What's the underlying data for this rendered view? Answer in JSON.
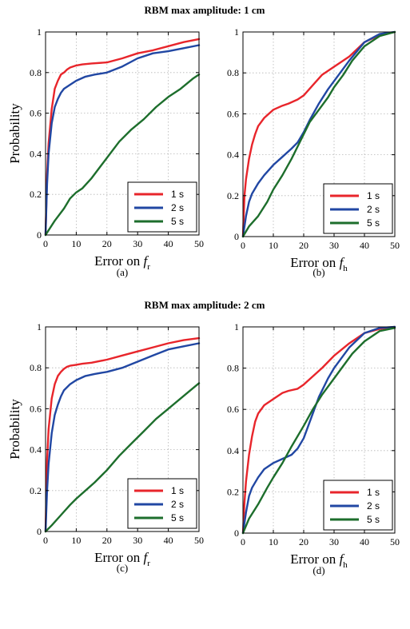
{
  "sections": [
    {
      "title": "RBM max amplitude: 1 cm"
    },
    {
      "title": "RBM max amplitude: 2 cm"
    }
  ],
  "chart_data": [
    {
      "type": "line",
      "panel": "(a)",
      "xlabel_text": "Error on ",
      "xlabel_var": "f",
      "xlabel_sub": "r",
      "ylabel": "Probability",
      "xlim": [
        0,
        50
      ],
      "ylim": [
        0,
        1
      ],
      "xticks": [
        0,
        10,
        20,
        30,
        40,
        50
      ],
      "yticks": [
        0,
        0.2,
        0.4,
        0.6,
        0.8,
        1
      ],
      "ytick_labels": [
        "0",
        "0.2",
        "0.4",
        "0.6",
        "0.8",
        "1"
      ],
      "grid": true,
      "legend": "bottom-right",
      "series": [
        {
          "name": "1 s",
          "color": "#e8252b",
          "x": [
            0,
            0.5,
            1,
            2,
            3,
            4,
            5,
            6,
            7,
            8,
            10,
            12,
            15,
            20,
            25,
            30,
            35,
            40,
            45,
            50
          ],
          "y": [
            0,
            0.3,
            0.45,
            0.62,
            0.72,
            0.76,
            0.79,
            0.8,
            0.815,
            0.825,
            0.835,
            0.84,
            0.845,
            0.85,
            0.87,
            0.895,
            0.91,
            0.93,
            0.95,
            0.965
          ]
        },
        {
          "name": "2 s",
          "color": "#2147a3",
          "x": [
            0,
            0.5,
            1,
            2,
            3,
            4,
            5,
            6,
            8,
            10,
            13,
            16,
            20,
            25,
            30,
            35,
            40,
            45,
            50
          ],
          "y": [
            0,
            0.25,
            0.4,
            0.55,
            0.63,
            0.67,
            0.7,
            0.72,
            0.74,
            0.76,
            0.78,
            0.79,
            0.8,
            0.83,
            0.87,
            0.895,
            0.905,
            0.92,
            0.935
          ]
        },
        {
          "name": "5 s",
          "color": "#1d6e2c",
          "x": [
            0,
            3,
            6,
            8,
            10,
            12,
            15,
            18,
            20,
            24,
            28,
            32,
            36,
            40,
            44,
            48,
            50
          ],
          "y": [
            0,
            0.07,
            0.13,
            0.18,
            0.21,
            0.23,
            0.28,
            0.34,
            0.38,
            0.46,
            0.52,
            0.57,
            0.63,
            0.68,
            0.72,
            0.77,
            0.79
          ]
        }
      ]
    },
    {
      "type": "line",
      "panel": "(b)",
      "xlabel_text": "Error on ",
      "xlabel_var": "f",
      "xlabel_sub": "h",
      "ylabel": "",
      "xlim": [
        0,
        50
      ],
      "ylim": [
        0,
        1
      ],
      "xticks": [
        0,
        10,
        20,
        30,
        40,
        50
      ],
      "yticks": [
        0,
        0.2,
        0.4,
        0.6,
        0.8,
        1
      ],
      "ytick_labels": [
        "0",
        "0.2",
        "0.4",
        "0.6",
        "0.8",
        "1"
      ],
      "grid": true,
      "legend": "bottom-right",
      "series": [
        {
          "name": "1 s",
          "color": "#e8252b",
          "x": [
            0,
            0.5,
            1,
            2,
            3,
            4,
            5,
            7,
            10,
            13,
            15,
            18,
            20,
            23,
            26,
            30,
            35,
            40,
            45,
            50
          ],
          "y": [
            0,
            0.2,
            0.28,
            0.38,
            0.45,
            0.5,
            0.54,
            0.58,
            0.62,
            0.64,
            0.65,
            0.67,
            0.69,
            0.74,
            0.79,
            0.83,
            0.88,
            0.95,
            0.985,
            1
          ]
        },
        {
          "name": "2 s",
          "color": "#2147a3",
          "x": [
            0,
            1,
            2,
            3,
            5,
            7,
            10,
            13,
            16,
            18,
            20,
            22,
            25,
            28,
            30,
            35,
            40,
            45,
            50
          ],
          "y": [
            0,
            0.1,
            0.17,
            0.21,
            0.26,
            0.3,
            0.35,
            0.39,
            0.43,
            0.46,
            0.51,
            0.57,
            0.65,
            0.72,
            0.76,
            0.86,
            0.95,
            0.99,
            1
          ]
        },
        {
          "name": "5 s",
          "color": "#1d6e2c",
          "x": [
            0,
            2,
            5,
            8,
            10,
            13,
            16,
            18,
            20,
            22,
            25,
            28,
            30,
            33,
            36,
            40,
            45,
            50
          ],
          "y": [
            0,
            0.05,
            0.1,
            0.17,
            0.23,
            0.3,
            0.38,
            0.44,
            0.5,
            0.56,
            0.62,
            0.68,
            0.73,
            0.79,
            0.86,
            0.93,
            0.98,
            1
          ]
        }
      ]
    },
    {
      "type": "line",
      "panel": "(c)",
      "xlabel_text": "Error on ",
      "xlabel_var": "f",
      "xlabel_sub": "r",
      "ylabel": "Probability",
      "xlim": [
        0,
        50
      ],
      "ylim": [
        0,
        1
      ],
      "xticks": [
        0,
        10,
        20,
        30,
        40,
        50
      ],
      "yticks": [
        0,
        0.2,
        0.4,
        0.6,
        0.8,
        1
      ],
      "ytick_labels": [
        "0",
        "0.2",
        "0.4",
        "0.6",
        "0.8",
        "1"
      ],
      "grid": true,
      "legend": "bottom-right",
      "series": [
        {
          "name": "1 s",
          "color": "#e8252b",
          "x": [
            0,
            0.5,
            1,
            2,
            3,
            4,
            5,
            6,
            7,
            8,
            10,
            12,
            15,
            20,
            25,
            30,
            35,
            40,
            45,
            50
          ],
          "y": [
            0,
            0.35,
            0.5,
            0.65,
            0.72,
            0.76,
            0.78,
            0.795,
            0.805,
            0.81,
            0.815,
            0.82,
            0.825,
            0.84,
            0.86,
            0.88,
            0.9,
            0.92,
            0.935,
            0.945
          ]
        },
        {
          "name": "2 s",
          "color": "#2147a3",
          "x": [
            0,
            0.5,
            1,
            2,
            3,
            4,
            5,
            6,
            8,
            10,
            13,
            16,
            20,
            25,
            30,
            35,
            40,
            45,
            50
          ],
          "y": [
            0,
            0.2,
            0.33,
            0.48,
            0.57,
            0.62,
            0.66,
            0.69,
            0.72,
            0.74,
            0.76,
            0.77,
            0.78,
            0.8,
            0.83,
            0.86,
            0.89,
            0.905,
            0.92
          ]
        },
        {
          "name": "5 s",
          "color": "#1d6e2c",
          "x": [
            0,
            2,
            5,
            8,
            10,
            13,
            16,
            20,
            24,
            28,
            32,
            36,
            40,
            44,
            48,
            50
          ],
          "y": [
            0,
            0.03,
            0.08,
            0.13,
            0.16,
            0.2,
            0.24,
            0.3,
            0.37,
            0.43,
            0.49,
            0.55,
            0.6,
            0.65,
            0.7,
            0.725
          ]
        }
      ]
    },
    {
      "type": "line",
      "panel": "(d)",
      "xlabel_text": "Error on ",
      "xlabel_var": "f",
      "xlabel_sub": "h",
      "ylabel": "",
      "xlim": [
        0,
        50
      ],
      "ylim": [
        0,
        1
      ],
      "xticks": [
        0,
        10,
        20,
        30,
        40,
        50
      ],
      "yticks": [
        0,
        0.2,
        0.4,
        0.6,
        0.8,
        1
      ],
      "ytick_labels": [
        "0",
        "0.2",
        "0.4",
        "0.6",
        "0.8",
        "1"
      ],
      "grid": true,
      "legend": "bottom-right",
      "series": [
        {
          "name": "1 s",
          "color": "#e8252b",
          "x": [
            0,
            0.5,
            1,
            2,
            3,
            4,
            5,
            7,
            10,
            13,
            15,
            18,
            20,
            23,
            26,
            30,
            35,
            40,
            45,
            50
          ],
          "y": [
            0,
            0.15,
            0.25,
            0.38,
            0.47,
            0.54,
            0.58,
            0.62,
            0.65,
            0.68,
            0.69,
            0.7,
            0.72,
            0.76,
            0.8,
            0.86,
            0.92,
            0.97,
            0.99,
            1
          ]
        },
        {
          "name": "2 s",
          "color": "#2147a3",
          "x": [
            0,
            1,
            2,
            3,
            5,
            7,
            10,
            13,
            16,
            18,
            20,
            22,
            25,
            28,
            30,
            35,
            40,
            45,
            50
          ],
          "y": [
            0,
            0.1,
            0.18,
            0.22,
            0.27,
            0.31,
            0.34,
            0.36,
            0.38,
            0.41,
            0.46,
            0.54,
            0.66,
            0.75,
            0.8,
            0.9,
            0.97,
            0.995,
            1
          ]
        },
        {
          "name": "5 s",
          "color": "#1d6e2c",
          "x": [
            0,
            2,
            5,
            8,
            10,
            13,
            16,
            20,
            23,
            26,
            30,
            33,
            36,
            40,
            45,
            50
          ],
          "y": [
            0,
            0.07,
            0.14,
            0.22,
            0.27,
            0.34,
            0.42,
            0.52,
            0.6,
            0.67,
            0.75,
            0.81,
            0.87,
            0.93,
            0.98,
            0.995
          ]
        }
      ]
    }
  ]
}
